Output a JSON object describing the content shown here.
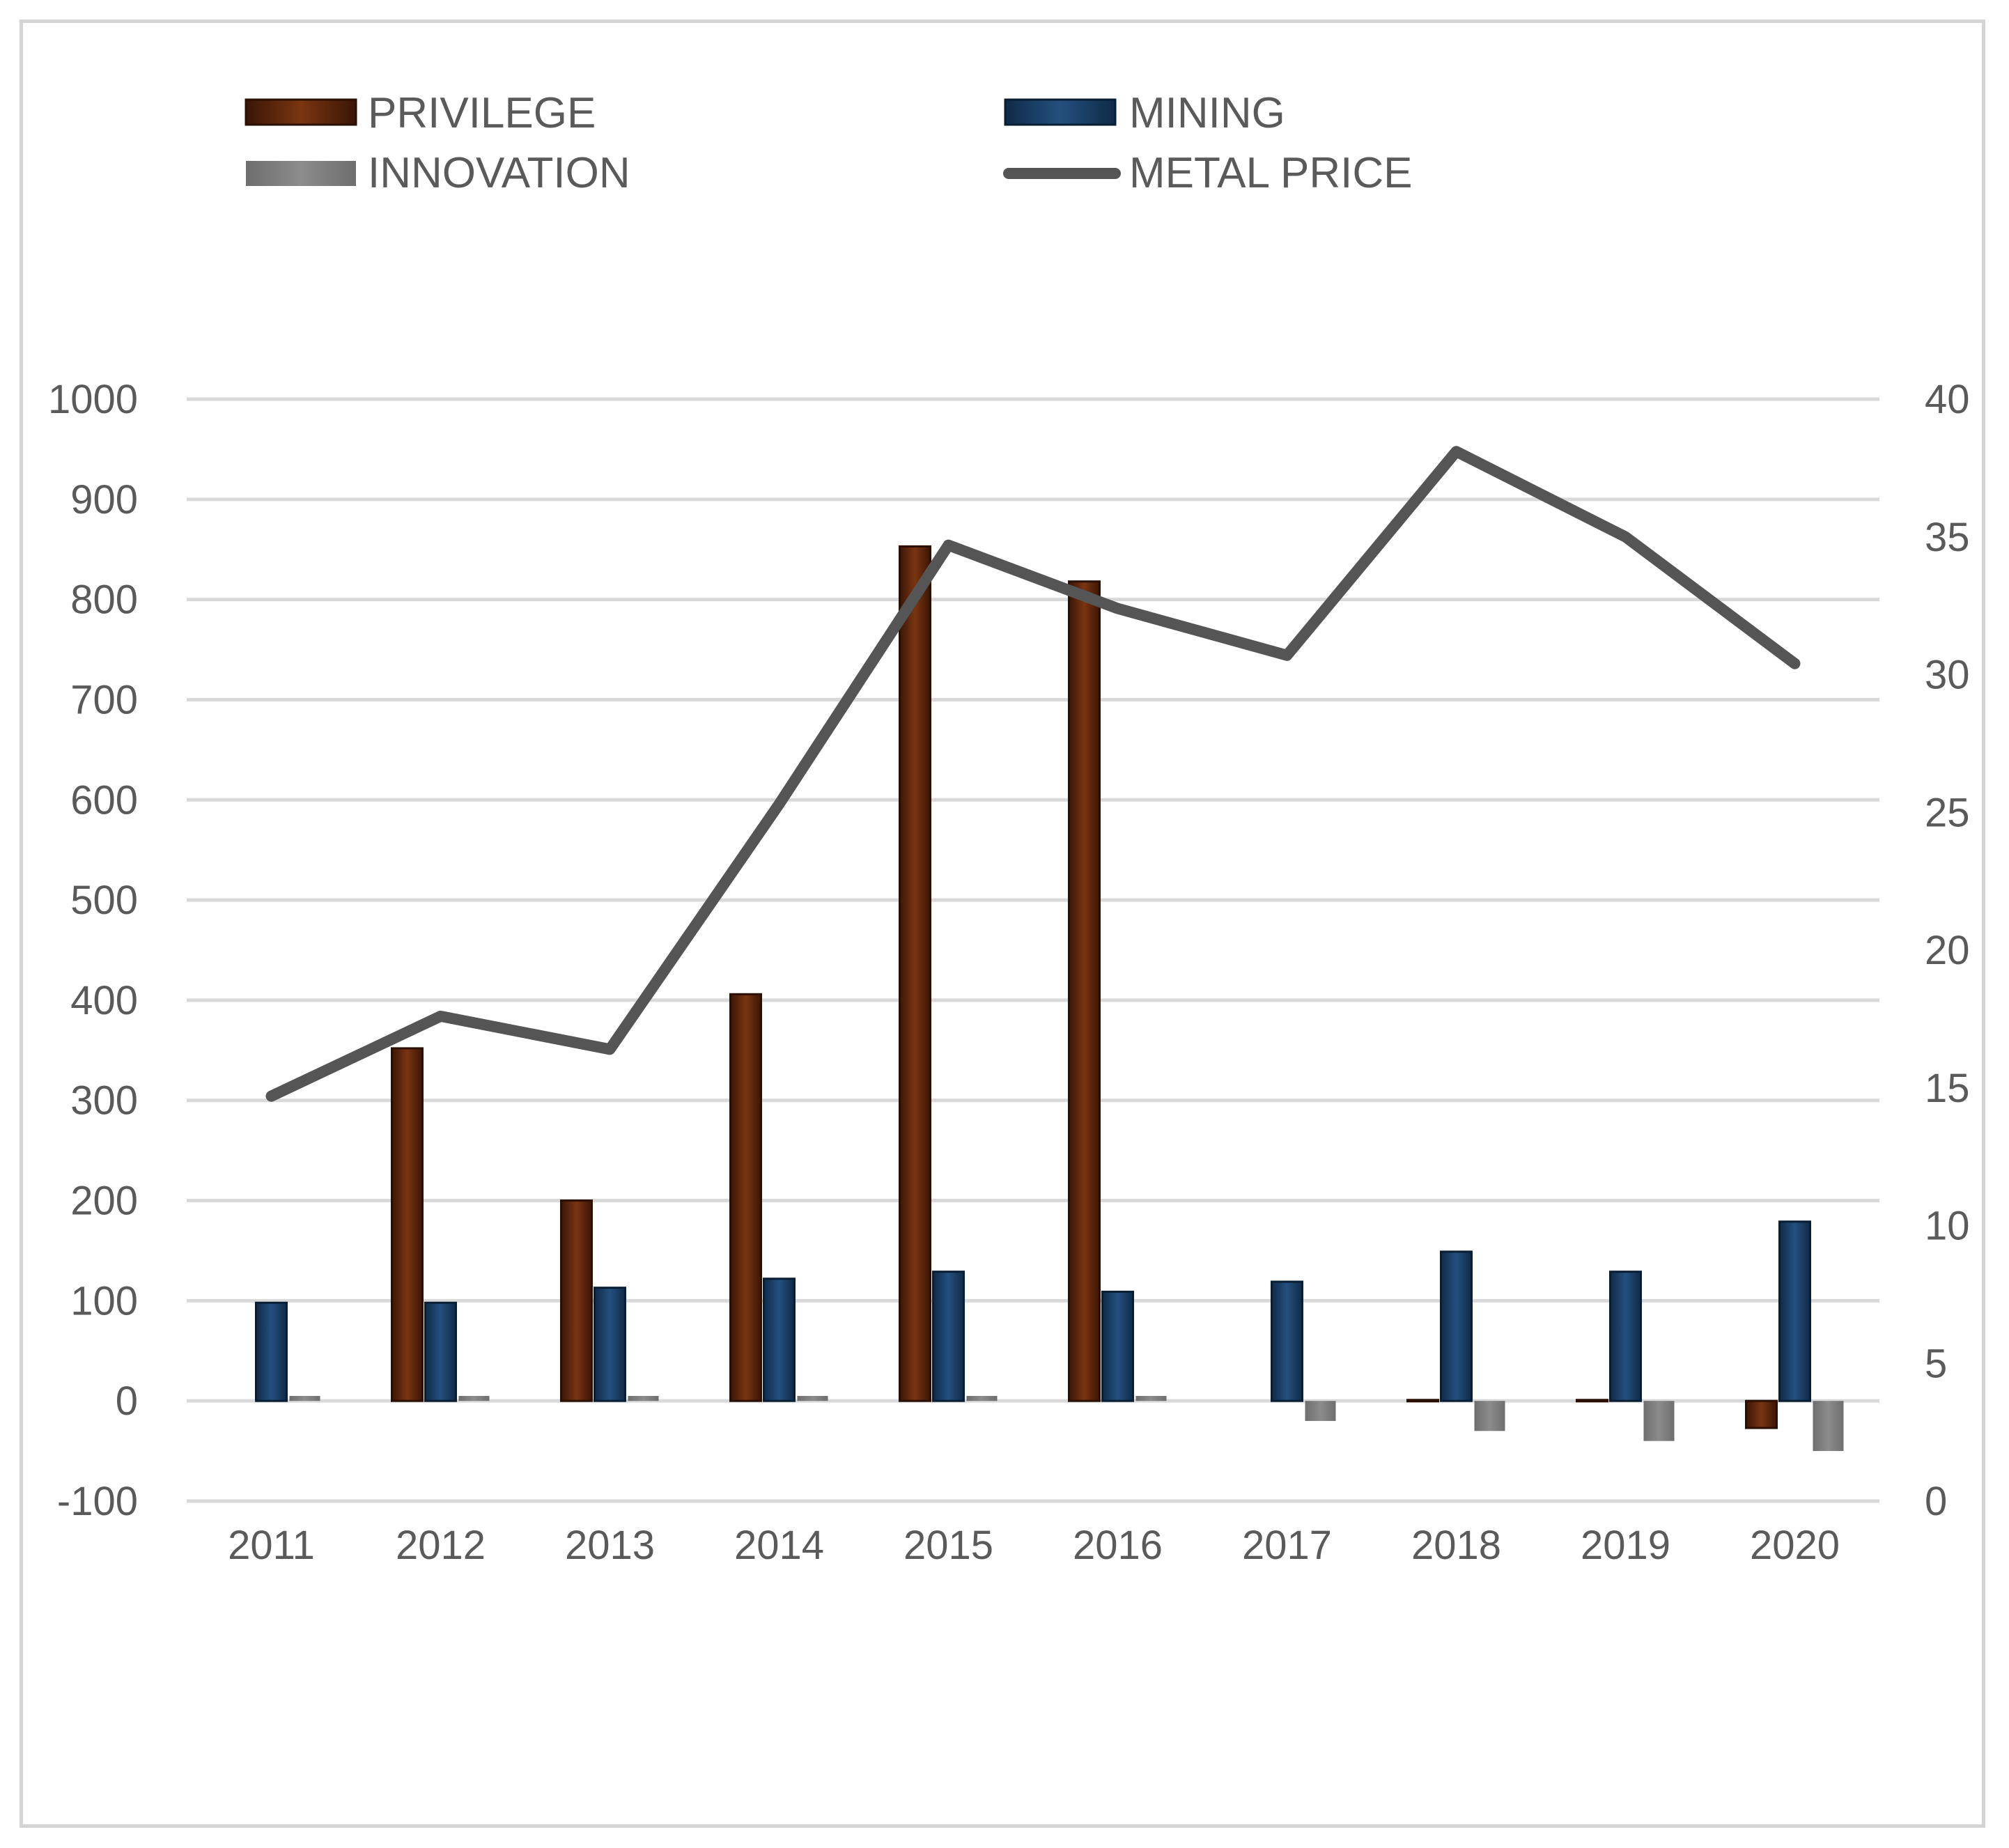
{
  "chart_data": {
    "type": "bar",
    "title": "",
    "categories": [
      "2011",
      "2012",
      "2013",
      "2014",
      "2015",
      "2016",
      "2017",
      "2018",
      "2019",
      "2020"
    ],
    "series": [
      {
        "name": "PRIVILEGE",
        "kind": "bar",
        "axis": "left",
        "color": "#6b2c0c",
        "values": [
          0,
          352,
          200,
          406,
          853,
          818,
          0,
          1,
          1,
          -27
        ]
      },
      {
        "name": "MINING",
        "kind": "bar",
        "axis": "left",
        "color": "#1c3f66",
        "values": [
          98,
          98,
          113,
          122,
          129,
          109,
          119,
          149,
          129,
          179
        ]
      },
      {
        "name": "INNOVATION",
        "kind": "bar",
        "axis": "left",
        "color": "#7a7a7a",
        "values": [
          5,
          5,
          5,
          5,
          5,
          5,
          -20,
          -30,
          -40,
          -50
        ]
      },
      {
        "name": "METAL PRICE",
        "kind": "line",
        "axis": "right",
        "color": "#555555",
        "values": [
          14.7,
          17.6,
          16.4,
          25.3,
          34.7,
          32.4,
          30.7,
          38.1,
          35.0,
          30.4
        ]
      }
    ],
    "yaxis_left": {
      "min": -100,
      "max": 1000,
      "step": 100,
      "ticks": [
        "-100",
        "0",
        "100",
        "200",
        "300",
        "400",
        "500",
        "600",
        "700",
        "800",
        "900",
        "1000"
      ]
    },
    "yaxis_right": {
      "min": 0,
      "max": 40,
      "step": 5,
      "ticks": [
        "0",
        "5",
        "10",
        "15",
        "20",
        "25",
        "30",
        "35",
        "40"
      ]
    },
    "xlabel": "",
    "ylabel": "",
    "grid": true,
    "legend_position": "top"
  }
}
